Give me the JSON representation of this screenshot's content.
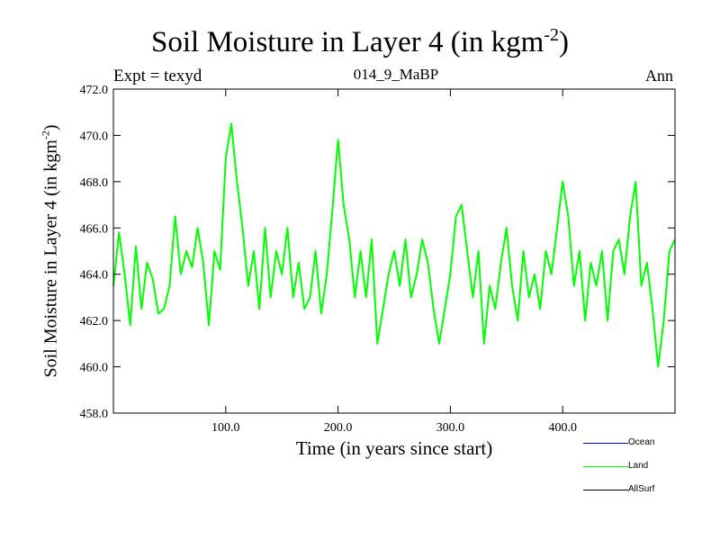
{
  "chart_data": {
    "type": "line",
    "title": "Soil Moisture in Layer 4 (in kgm",
    "title_sup": "-2",
    "title_close": ")",
    "subtitle": "014_9_MaBP",
    "expt_label": "Expt = texyd",
    "season_label": "Ann",
    "xlabel": "Time (in years since start)",
    "ylabel": "Soil Moisture in Layer 4 (in kgm",
    "ylabel_sup": "-2",
    "ylabel_close": ")",
    "xlim": [
      0,
      500
    ],
    "ylim": [
      458.0,
      472.0
    ],
    "xticks": [
      100,
      200,
      300,
      400
    ],
    "xtick_labels": [
      "100.0",
      "200.0",
      "300.0",
      "400.0"
    ],
    "yticks": [
      458,
      460,
      462,
      464,
      466,
      468,
      470,
      472
    ],
    "ytick_labels": [
      "458.0",
      "460.0",
      "462.0",
      "464.0",
      "466.0",
      "468.0",
      "470.0",
      "472.0"
    ],
    "grid": false,
    "legend": [
      {
        "name": "Ocean",
        "color": "#0000ff"
      },
      {
        "name": "Land",
        "color": "#00ff00"
      },
      {
        "name": "AllSurf",
        "color": "#000000"
      }
    ],
    "series": [
      {
        "name": "Land",
        "color": "#00ff00",
        "x": [
          0,
          5,
          10,
          15,
          20,
          25,
          30,
          35,
          40,
          45,
          50,
          55,
          60,
          65,
          70,
          75,
          80,
          85,
          90,
          95,
          100,
          105,
          110,
          115,
          120,
          125,
          130,
          135,
          140,
          145,
          150,
          155,
          160,
          165,
          170,
          175,
          180,
          185,
          190,
          195,
          200,
          205,
          210,
          215,
          220,
          225,
          230,
          235,
          240,
          245,
          250,
          255,
          260,
          265,
          270,
          275,
          280,
          285,
          290,
          295,
          300,
          305,
          310,
          315,
          320,
          325,
          330,
          335,
          340,
          345,
          350,
          355,
          360,
          365,
          370,
          375,
          380,
          385,
          390,
          395,
          400,
          405,
          410,
          415,
          420,
          425,
          430,
          435,
          440,
          445,
          450,
          455,
          460,
          465,
          470,
          475,
          480,
          485,
          490,
          495,
          500
        ],
        "y": [
          463.5,
          465.8,
          464.0,
          461.8,
          465.2,
          462.5,
          464.5,
          463.8,
          462.3,
          462.5,
          463.5,
          466.5,
          464.0,
          465.0,
          464.3,
          466.0,
          464.5,
          461.8,
          465.0,
          464.2,
          469.0,
          470.5,
          468.0,
          466.0,
          463.5,
          465.0,
          462.5,
          466.0,
          463.0,
          465.0,
          464.0,
          466.0,
          463.0,
          464.5,
          462.5,
          463.0,
          465.0,
          462.3,
          464.0,
          466.8,
          469.8,
          467.0,
          465.5,
          463.0,
          465.0,
          463.0,
          465.5,
          461.0,
          462.5,
          464.0,
          465.0,
          463.5,
          465.5,
          463.0,
          464.0,
          465.5,
          464.5,
          462.5,
          461.0,
          462.5,
          464.0,
          466.5,
          467.0,
          465.0,
          463.0,
          465.0,
          461.0,
          463.5,
          462.5,
          464.5,
          466.0,
          463.5,
          462.0,
          465.0,
          463.0,
          464.0,
          462.5,
          465.0,
          464.0,
          466.0,
          468.0,
          466.5,
          463.5,
          465.0,
          462.0,
          464.5,
          463.5,
          465.0,
          462.0,
          465.0,
          465.5,
          464.0,
          466.5,
          468.0,
          463.5,
          464.5,
          462.5,
          460.0,
          462.0,
          465.0,
          465.5
        ]
      }
    ]
  }
}
